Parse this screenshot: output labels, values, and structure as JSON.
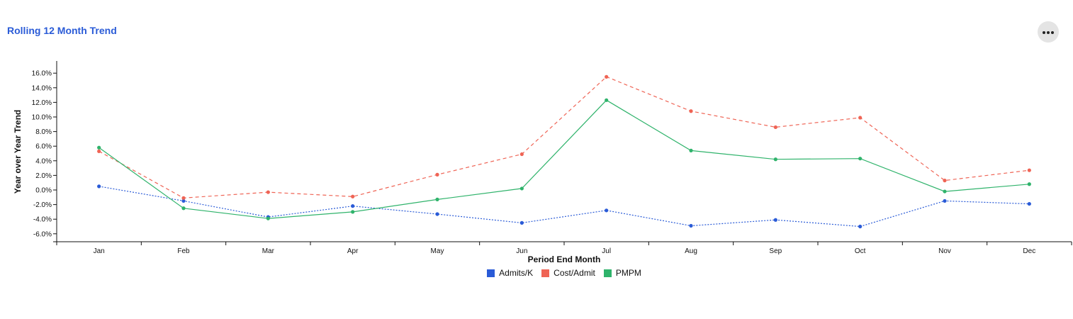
{
  "header": {
    "title": "Rolling 12 Month Trend",
    "more_icon": "more-horizontal-icon"
  },
  "chart_data": {
    "type": "line",
    "title": "",
    "xlabel": "Period End Month",
    "ylabel": "Year over Year Trend",
    "categories": [
      "Jan",
      "Feb",
      "Mar",
      "Apr",
      "May",
      "Jun",
      "Jul",
      "Aug",
      "Sep",
      "Oct",
      "Nov",
      "Dec"
    ],
    "y_ticks": [
      "16.0%",
      "14.0%",
      "12.0%",
      "10.0%",
      "8.0%",
      "6.0%",
      "4.0%",
      "2.0%",
      "0.0%",
      "-2.0%",
      "-4.0%",
      "-6.0%"
    ],
    "ylim": [
      -7.0,
      17.5
    ],
    "grid": false,
    "legend_position": "bottom",
    "series": [
      {
        "name": "Admits/K",
        "color": "#2a5bd7",
        "style": "dotted",
        "values": [
          0.5,
          -1.5,
          -3.7,
          -2.2,
          -3.3,
          -4.5,
          -2.8,
          -4.9,
          -4.1,
          -5.0,
          -1.5,
          -1.9
        ]
      },
      {
        "name": "Cost/Admit",
        "color": "#ef6455",
        "style": "dashed",
        "values": [
          5.3,
          -1.1,
          -0.3,
          -0.9,
          2.1,
          4.9,
          15.5,
          10.8,
          8.6,
          9.9,
          1.3,
          2.7
        ]
      },
      {
        "name": "PMPM",
        "color": "#2fb36b",
        "style": "solid",
        "values": [
          5.8,
          -2.5,
          -3.9,
          -3.0,
          -1.3,
          0.2,
          12.3,
          5.4,
          4.2,
          4.3,
          -0.2,
          0.8
        ]
      }
    ]
  }
}
